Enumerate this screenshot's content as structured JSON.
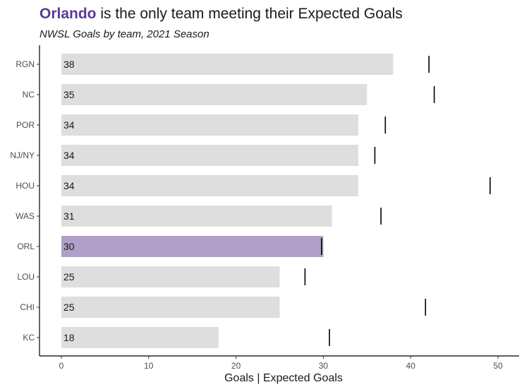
{
  "title": {
    "highlight": "Orlando",
    "rest": " is the only team meeting their Expected Goals"
  },
  "subtitle": "NWSL Goals by team, 2021 Season",
  "colors": {
    "bar": "#dedede",
    "highlight_bar": "#b09fc8",
    "highlight_text": "#5b3a96",
    "xg_marker": "#000000"
  },
  "chart_data": {
    "type": "bar",
    "orientation": "horizontal",
    "xlabel": "Goals | Expected Goals",
    "xlim": [
      0,
      52
    ],
    "xticks": [
      0,
      10,
      20,
      30,
      40,
      50
    ],
    "grid": false,
    "highlight": "ORL",
    "categories": [
      "RGN",
      "NC",
      "POR",
      "NJ/NY",
      "HOU",
      "WAS",
      "ORL",
      "LOU",
      "CHI",
      "KC"
    ],
    "series": [
      {
        "name": "Goals",
        "values": [
          38,
          35,
          34,
          34,
          34,
          31,
          30,
          25,
          25,
          18
        ]
      },
      {
        "name": "Expected Goals",
        "values": [
          42.1,
          42.7,
          37.1,
          35.9,
          49.1,
          36.6,
          29.8,
          27.9,
          41.7,
          30.7
        ]
      }
    ]
  }
}
